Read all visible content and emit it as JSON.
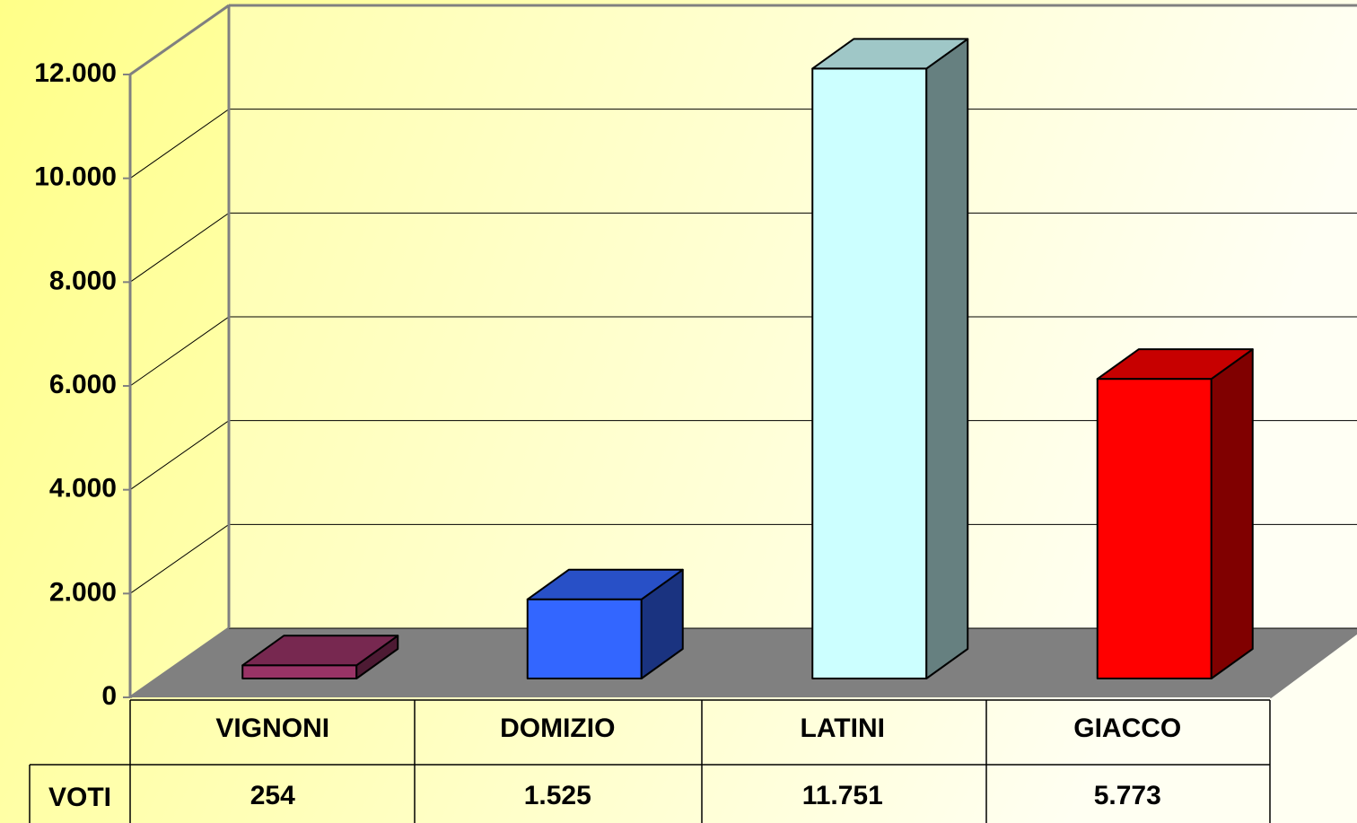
{
  "chart_data": {
    "type": "bar3d",
    "categories": [
      "VIGNONI",
      "DOMIZIO",
      "LATINI",
      "GIACCO"
    ],
    "series": [
      {
        "name": "VOTI",
        "colors": [
          "#993366",
          "#3366ff",
          "#ccffff",
          "#ff0000"
        ],
        "values": [
          254,
          1525,
          11751,
          5773
        ],
        "value_labels": [
          "254",
          "1.525",
          "11.751",
          "5.773"
        ]
      }
    ],
    "ylim": [
      0,
      12000
    ],
    "yticks": [
      0,
      {
        "value": 2000,
        "label": "2.000"
      },
      {
        "value": 4000,
        "label": "4.000"
      },
      {
        "value": 6000,
        "label": "6.000"
      },
      {
        "value": 8000,
        "label": "8.000"
      },
      {
        "value": 10000,
        "label": "10.000"
      },
      {
        "value": 12000,
        "label": "12.000"
      }
    ],
    "grid": true
  }
}
